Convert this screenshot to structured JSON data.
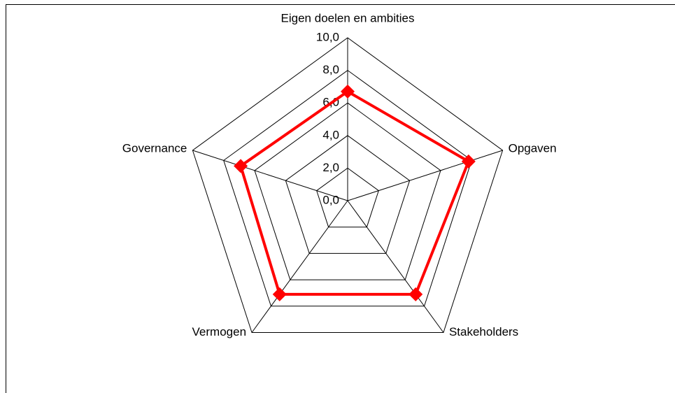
{
  "chart_data": {
    "type": "radar",
    "categories": [
      "Eigen doelen en ambities",
      "Opgaven",
      "Stakeholders",
      "Vermogen",
      "Governance"
    ],
    "values": [
      6.7,
      7.8,
      7.1,
      7.1,
      6.9
    ],
    "color": "#ff0000",
    "rlim": [
      0,
      10
    ],
    "rticks": [
      {
        "value": 0,
        "label": "0,0"
      },
      {
        "value": 2,
        "label": "2,0"
      },
      {
        "value": 4,
        "label": "4,0"
      },
      {
        "value": 6,
        "label": "6,0"
      },
      {
        "value": 8,
        "label": "8,0"
      },
      {
        "value": 10,
        "label": "10,0"
      }
    ],
    "grid": true
  }
}
